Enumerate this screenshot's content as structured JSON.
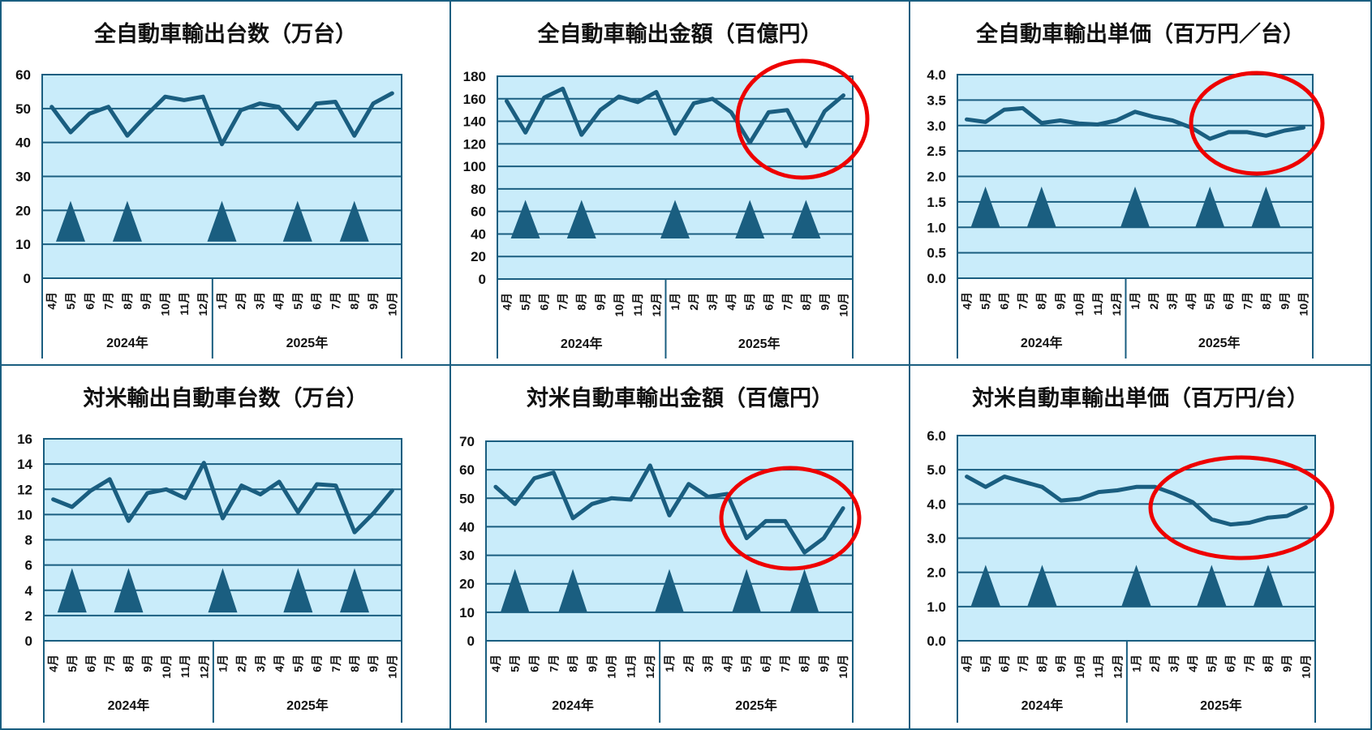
{
  "colors": {
    "line": "#1a5e80",
    "plot_bg": "#c9ecfa",
    "grid": "#1a5e80",
    "marker": "#1a5e80",
    "highlight_ellipse": "#ee0000"
  },
  "months": [
    "4月",
    "5月",
    "6月",
    "7月",
    "8月",
    "9月",
    "10月",
    "11月",
    "12月",
    "1月",
    "2月",
    "3月",
    "4月",
    "5月",
    "6月",
    "7月",
    "8月",
    "9月",
    "10月"
  ],
  "years": [
    "2024年",
    "2025年"
  ],
  "chart_data": [
    {
      "type": "line",
      "title": "全自動車輸出台数（万台）",
      "ylim": [
        0,
        60
      ],
      "yticks": [
        "0",
        "10",
        "20",
        "30",
        "40",
        "50",
        "60"
      ],
      "grid": true,
      "values": [
        50.5,
        43,
        48.5,
        50.5,
        42,
        48,
        53.5,
        52.5,
        53.5,
        39.5,
        49.5,
        51.5,
        50.5,
        44,
        51.5,
        52,
        42,
        51.5,
        54.5
      ],
      "triangle_markers_at": [
        "2024-5月",
        "2024-8月",
        "2025-1月",
        "2025-5月",
        "2025-8月"
      ],
      "highlight": false
    },
    {
      "type": "line",
      "title": "全自動車輸出金額（百億円）",
      "ylim": [
        0,
        180
      ],
      "yticks": [
        "0",
        "20",
        "40",
        "60",
        "80",
        "100",
        "120",
        "140",
        "160",
        "180"
      ],
      "grid": true,
      "values": [
        158,
        130,
        161,
        169,
        128,
        150,
        162,
        157,
        166,
        129,
        156,
        160,
        148,
        121,
        148,
        150,
        118,
        149,
        163
      ],
      "triangle_markers_at": [
        "2024-5月",
        "2024-8月",
        "2025-1月",
        "2025-5月",
        "2025-8月"
      ],
      "highlight": true
    },
    {
      "type": "line",
      "title": "全自動車輸出単価（百万円／台）",
      "ylim": [
        0,
        4
      ],
      "yticks": [
        "0.0",
        "0.5",
        "1.0",
        "1.5",
        "2.0",
        "2.5",
        "3.0",
        "3.5",
        "4.0"
      ],
      "grid": true,
      "values": [
        3.12,
        3.07,
        3.31,
        3.34,
        3.05,
        3.1,
        3.04,
        3.02,
        3.1,
        3.27,
        3.17,
        3.1,
        2.96,
        2.74,
        2.87,
        2.87,
        2.8,
        2.9,
        2.96
      ],
      "triangle_markers_at": [
        "2024-5月",
        "2024-8月",
        "2025-1月",
        "2025-5月",
        "2025-8月"
      ],
      "highlight": true
    },
    {
      "type": "line",
      "title": "対米輸出自動車台数（万台）",
      "ylim": [
        0,
        16
      ],
      "yticks": [
        "0",
        "2",
        "4",
        "6",
        "8",
        "10",
        "12",
        "14",
        "16"
      ],
      "grid": true,
      "values": [
        11.2,
        10.6,
        11.9,
        12.8,
        9.5,
        11.7,
        12.0,
        11.3,
        14.1,
        9.7,
        12.3,
        11.6,
        12.6,
        10.2,
        12.4,
        12.3,
        8.6,
        10.1,
        11.9
      ],
      "triangle_markers_at": [
        "2024-5月",
        "2024-8月",
        "2025-1月",
        "2025-5月",
        "2025-8月"
      ],
      "highlight": false
    },
    {
      "type": "line",
      "title": "対米自動車輸出金額（百億円）",
      "ylim": [
        0,
        70
      ],
      "yticks": [
        "0",
        "10",
        "20",
        "30",
        "40",
        "50",
        "60",
        "70"
      ],
      "grid": true,
      "values": [
        54,
        48,
        57,
        59,
        43,
        48,
        50,
        49.5,
        61.5,
        44,
        55,
        50.5,
        51.5,
        36,
        42,
        42,
        31,
        36,
        46.5
      ],
      "triangle_markers_at": [
        "2024-5月",
        "2024-8月",
        "2025-1月",
        "2025-5月",
        "2025-8月"
      ],
      "highlight": true
    },
    {
      "type": "line",
      "title": "対米自動車輸出単価（百万円/台）",
      "ylim": [
        0,
        6
      ],
      "yticks": [
        "0.0",
        "1.0",
        "2.0",
        "3.0",
        "4.0",
        "5.0",
        "6.0"
      ],
      "grid": true,
      "values": [
        4.8,
        4.5,
        4.8,
        4.65,
        4.5,
        4.1,
        4.15,
        4.35,
        4.4,
        4.5,
        4.5,
        4.3,
        4.05,
        3.55,
        3.4,
        3.45,
        3.6,
        3.65,
        3.9
      ],
      "triangle_markers_at": [
        "2024-5月",
        "2024-8月",
        "2025-1月",
        "2025-5月",
        "2025-8月"
      ],
      "highlight": true
    }
  ]
}
